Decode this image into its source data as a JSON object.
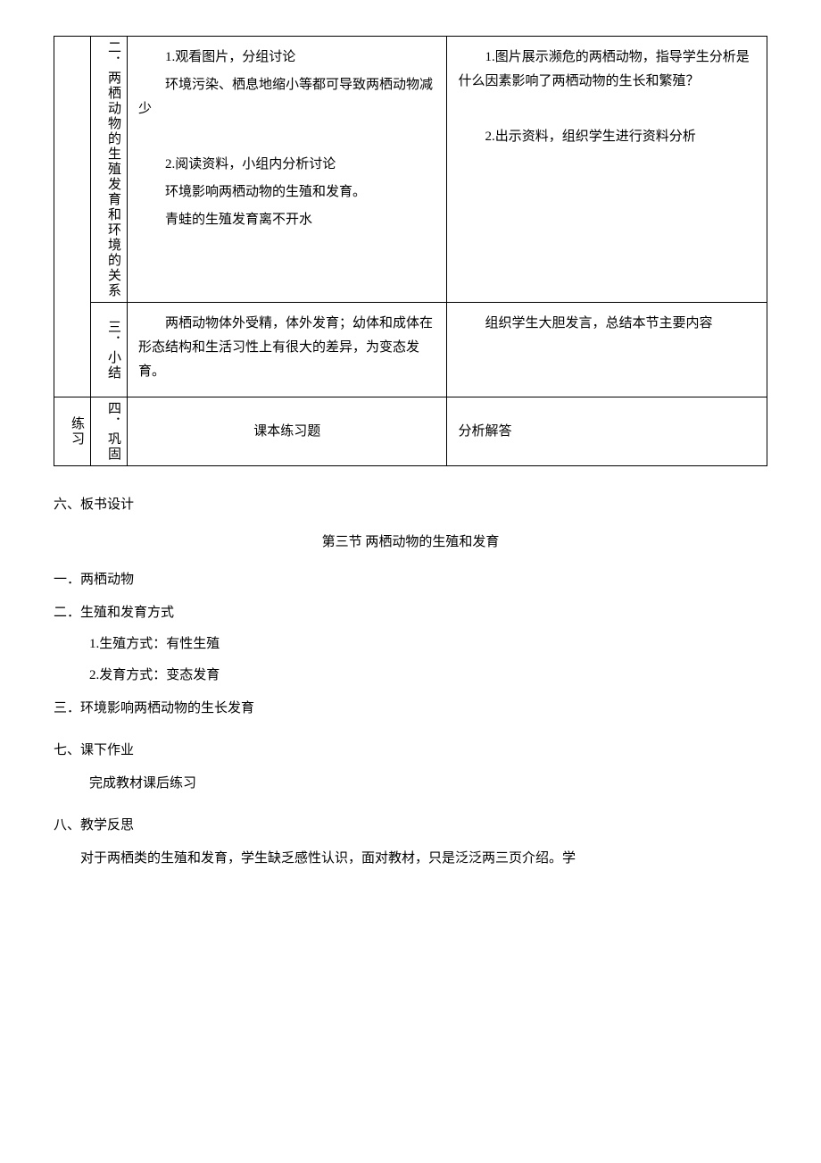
{
  "table": {
    "rows": [
      {
        "col1": "",
        "col2": "二．两栖动物的生殖发育和环境的关系",
        "col3_paras": [
          "1.观看图片，分组讨论",
          "环境污染、栖息地缩小等都可导致两栖动物减少",
          "",
          "2.阅读资料，小组内分析讨论",
          "环境影响两栖动物的生殖和发育。",
          "青蛙的生殖发育离不开水"
        ],
        "col4_paras": [
          "1.图片展示濒危的两栖动物，指导学生分析是什么因素影响了两栖动物的生长和繁殖？",
          "",
          "2.出示资料，组织学生进行资料分析"
        ]
      },
      {
        "col1": "",
        "col2": "三．小结",
        "col3_paras": [
          "两栖动物体外受精，体外发育；幼体和成体在形态结构和生活习性上有很大的差异，为变态发育。"
        ],
        "col4_paras": [
          "组织学生大胆发言，总结本节主要内容"
        ]
      },
      {
        "col1": "练习",
        "col2": "四．巩固",
        "col3_paras": [
          "课本练习题"
        ],
        "col4_paras": [
          "分析解答"
        ]
      }
    ]
  },
  "sections": {
    "six_title": "六、板书设计",
    "lesson_title": "第三节 两栖动物的生殖和发育",
    "outline": {
      "item1": "一．两栖动物",
      "item2": "二．生殖和发育方式",
      "item2_sub1": "1.生殖方式：有性生殖",
      "item2_sub2": "2.发育方式：变态发育",
      "item3": "三．环境影响两栖动物的生长发育"
    },
    "seven_title": "七、课下作业",
    "seven_content": "完成教材课后练习",
    "eight_title": "八、教学反思",
    "eight_content": "对于两栖类的生殖和发育，学生缺乏感性认识，面对教材，只是泛泛两三页介绍。学"
  }
}
